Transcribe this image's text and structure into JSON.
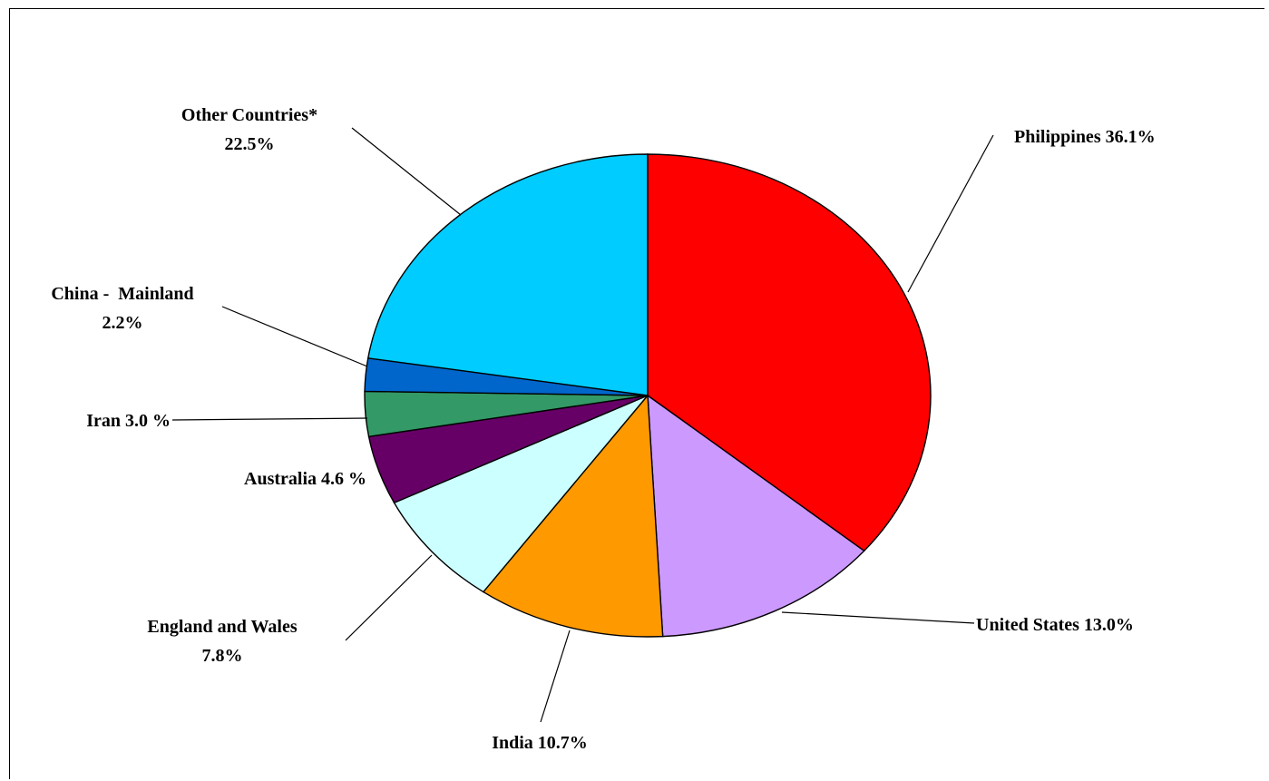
{
  "chart_data": {
    "type": "pie",
    "title": "",
    "slices": [
      {
        "label": "Philippines",
        "value": 36.1,
        "color": "#ff0000",
        "text_lines": [
          "Philippines 36.1%"
        ]
      },
      {
        "label": "United States",
        "value": 13.0,
        "color": "#cc99ff",
        "text_lines": [
          "United States 13.0%"
        ]
      },
      {
        "label": "India",
        "value": 10.7,
        "color": "#ff9900",
        "text_lines": [
          "India 10.7%"
        ]
      },
      {
        "label": "England and Wales",
        "value": 7.8,
        "color": "#ccffff",
        "text_lines": [
          "England and Wales",
          "7.8%"
        ]
      },
      {
        "label": "Australia",
        "value": 4.6,
        "color": "#660066",
        "text_lines": [
          "Australia 4.6 %"
        ]
      },
      {
        "label": "Iran",
        "value": 3.0,
        "color": "#339966",
        "text_lines": [
          "Iran 3.0 %"
        ]
      },
      {
        "label": "China - Mainland",
        "value": 2.2,
        "color": "#0066cc",
        "text_lines": [
          "China -  Mainland",
          "2.2%"
        ]
      },
      {
        "label": "Other Countries*",
        "value": 22.5,
        "color": "#00ccff",
        "text_lines": [
          "Other Countries*",
          "22.5%"
        ]
      }
    ]
  }
}
